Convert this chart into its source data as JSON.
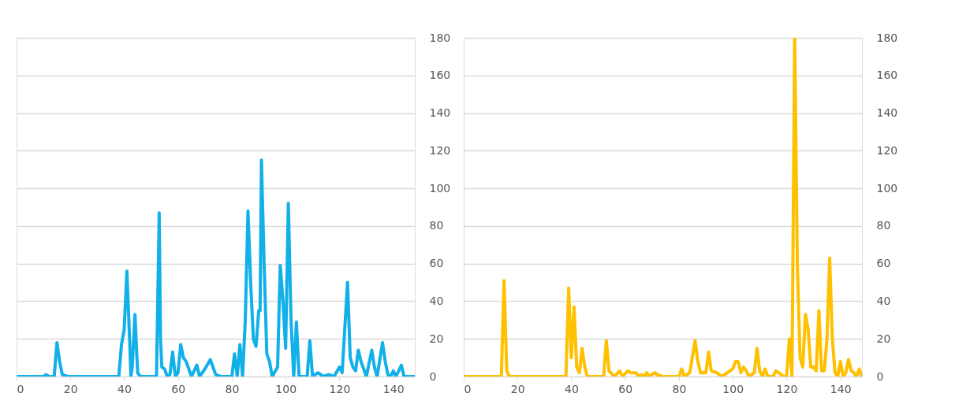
{
  "chart_data": [
    {
      "type": "line",
      "xlim": [
        0,
        148
      ],
      "xticks": [
        0,
        20,
        40,
        60,
        80,
        100,
        120,
        140
      ],
      "ylim": [
        0,
        180
      ],
      "yticks": [
        0,
        20,
        40,
        60,
        80,
        100,
        120,
        140,
        160,
        180
      ],
      "grid": "y",
      "marker": "none",
      "line_style": "solid",
      "series": [
        {
          "color": "#12b0e8",
          "x": [
            0,
            10,
            11,
            12,
            14,
            15,
            16,
            17,
            19,
            38,
            39,
            40,
            41,
            42,
            42.5,
            43,
            44,
            45,
            46,
            52,
            52.7,
            53,
            53.5,
            54,
            55,
            56,
            57,
            58,
            59,
            60,
            61,
            62,
            63,
            65,
            67,
            68,
            70,
            72,
            74,
            76,
            80,
            81,
            82,
            83,
            84,
            85,
            86,
            87,
            88,
            89,
            90,
            90.5,
            91,
            92,
            93,
            94,
            95,
            97,
            98,
            99,
            100,
            101,
            102,
            103,
            104,
            105,
            108,
            109,
            110,
            112,
            114,
            116,
            118,
            120,
            121,
            123,
            124,
            125,
            126,
            127,
            128,
            130,
            132,
            133,
            134,
            136,
            137,
            138,
            139,
            140,
            141,
            143,
            144,
            148
          ],
          "values": [
            0,
            0,
            1,
            0,
            0,
            18,
            8,
            1,
            0,
            0,
            17,
            25,
            56,
            20,
            0,
            5,
            33,
            2,
            0,
            0,
            60,
            87,
            20,
            5,
            4,
            0,
            1,
            13,
            0,
            2,
            17,
            10,
            8,
            0,
            6,
            0,
            4,
            9,
            1,
            0,
            0,
            12,
            0,
            17,
            0,
            30,
            88,
            50,
            20,
            16,
            35,
            35,
            115,
            60,
            12,
            8,
            0,
            5,
            59,
            40,
            15,
            92,
            30,
            0,
            29,
            0,
            0,
            19,
            0,
            2,
            0,
            1,
            0,
            5,
            2,
            50,
            10,
            5,
            3,
            14,
            8,
            0,
            14,
            5,
            0,
            18,
            8,
            1,
            0,
            3,
            0,
            6,
            0,
            0
          ]
        }
      ]
    },
    {
      "type": "line",
      "xlim": [
        0,
        148
      ],
      "xticks": [
        0,
        20,
        40,
        60,
        80,
        100,
        120,
        140
      ],
      "ylim": [
        0,
        180
      ],
      "yticks": [
        0,
        20,
        40,
        60,
        80,
        100,
        120,
        140,
        160,
        180
      ],
      "grid": "y",
      "marker": "none",
      "line_style": "solid",
      "series": [
        {
          "color": "#ffc000",
          "x": [
            0,
            14,
            15,
            16,
            17,
            38,
            39,
            40,
            41,
            42,
            43,
            44,
            45,
            46,
            52,
            53,
            54,
            56,
            58,
            59,
            61,
            62,
            64,
            65,
            66,
            67,
            68,
            69,
            71,
            72,
            74,
            80,
            81,
            82,
            84,
            86,
            87,
            88,
            90,
            91,
            92,
            94,
            96,
            98,
            100,
            101,
            102,
            103,
            104,
            105,
            106,
            108,
            109,
            110,
            111,
            112,
            113,
            115,
            116,
            117,
            119,
            120,
            121,
            122,
            123,
            124,
            125,
            126,
            127,
            128,
            129,
            130,
            131,
            132,
            133,
            134,
            135,
            136,
            137,
            138,
            139,
            140,
            141,
            142,
            143,
            144,
            145,
            146,
            147,
            148
          ],
          "values": [
            0,
            0,
            51,
            3,
            0,
            0,
            47,
            10,
            37,
            5,
            2,
            15,
            5,
            0,
            0,
            19,
            3,
            0,
            3,
            0,
            3,
            2,
            2,
            0,
            1,
            0,
            2,
            0,
            2,
            1,
            0,
            0,
            4,
            0,
            2,
            19,
            8,
            2,
            2,
            13,
            3,
            2,
            0,
            2,
            4,
            8,
            8,
            2,
            5,
            3,
            0,
            2,
            15,
            3,
            0,
            4,
            0,
            0,
            3,
            2,
            0,
            0,
            20,
            0,
            180,
            60,
            10,
            5,
            33,
            25,
            5,
            5,
            3,
            35,
            3,
            3,
            20,
            63,
            20,
            2,
            0,
            8,
            0,
            2,
            9,
            3,
            2,
            0,
            4,
            0
          ]
        }
      ]
    }
  ]
}
